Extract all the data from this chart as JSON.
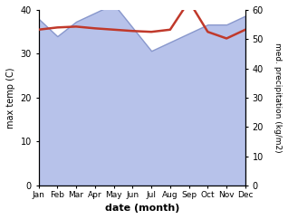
{
  "months": [
    "Jan",
    "Feb",
    "Mar",
    "Apr",
    "May",
    "Jun",
    "Jul",
    "Aug",
    "Sep",
    "Oct",
    "Nov",
    "Dec"
  ],
  "month_x": [
    1,
    2,
    3,
    4,
    5,
    6,
    7,
    8,
    9,
    10,
    11,
    12
  ],
  "temperature": [
    35.5,
    36.0,
    36.2,
    35.8,
    35.5,
    35.2,
    35.0,
    35.5,
    42.0,
    35.0,
    33.5,
    35.5
  ],
  "precipitation": [
    57.0,
    51.0,
    56.0,
    59.0,
    62.0,
    54.0,
    46.0,
    49.0,
    52.0,
    55.0,
    55.0,
    58.0
  ],
  "temp_color": "#c0392b",
  "precip_color": "#b0bce8",
  "precip_edge_color": "#8090c8",
  "xlabel": "date (month)",
  "ylabel_left": "max temp (C)",
  "ylabel_right": "med. precipitation (kg/m2)",
  "xlim": [
    1,
    12
  ],
  "ylim_left": [
    0,
    40
  ],
  "ylim_right": [
    0,
    60
  ],
  "yticks_left": [
    0,
    10,
    20,
    30,
    40
  ],
  "yticks_right": [
    0,
    10,
    20,
    30,
    40,
    50,
    60
  ],
  "background_color": "#ffffff"
}
